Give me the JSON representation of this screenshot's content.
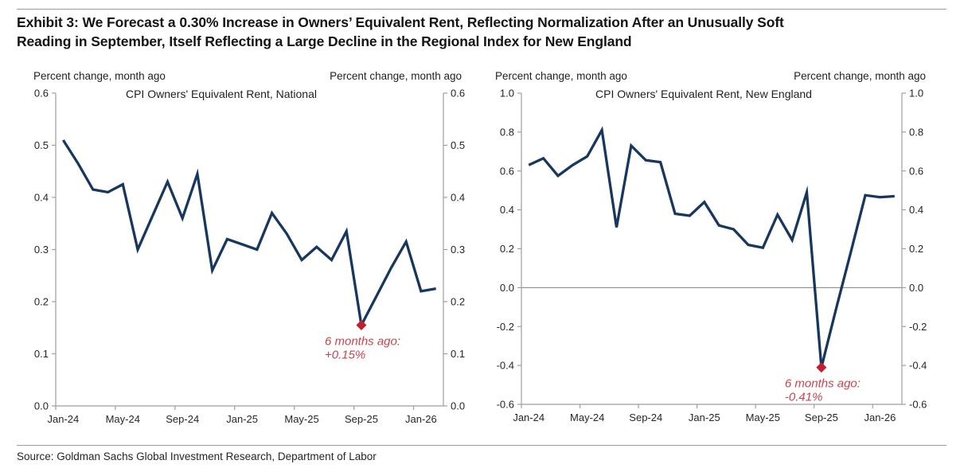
{
  "page": {
    "title": "Exhibit 3: We Forecast a 0.30% Increase in Owners’ Equivalent Rent, Reflecting Normalization After an Unusually Soft\nReading in September, Itself Reflecting a Large Decline in the Regional Index for New England",
    "source": "Source: Goldman Sachs Global Investment Research, Department of Labor"
  },
  "colors": {
    "line": "#17375e",
    "marker": "#c0202e",
    "annotation": "#c8454f",
    "axis": "#9e9e9e",
    "zero_line": "#808080",
    "tick_text": "#262626"
  },
  "chart_data": [
    {
      "type": "line",
      "title": "CPI Owners' Equivalent Rent, National",
      "axis_header_left": "Percent change, month ago",
      "axis_header_right": "Percent change, month ago",
      "categories": [
        "Jan-24",
        "Feb-24",
        "Mar-24",
        "Apr-24",
        "May-24",
        "Jun-24",
        "Jul-24",
        "Aug-24",
        "Sep-24",
        "Oct-24",
        "Nov-24",
        "Dec-24",
        "Jan-25",
        "Feb-25",
        "Mar-25",
        "Apr-25",
        "May-25",
        "Jun-25",
        "Jul-25",
        "Aug-25",
        "Sep-25",
        "Oct-25",
        "Nov-25",
        "Dec-25",
        "Jan-26",
        "Feb-26"
      ],
      "values": [
        0.51,
        0.465,
        0.415,
        0.41,
        0.425,
        0.3,
        0.365,
        0.43,
        0.36,
        0.445,
        0.26,
        0.32,
        0.31,
        0.3,
        0.37,
        0.33,
        0.28,
        0.305,
        0.28,
        0.335,
        0.155,
        0.21,
        0.265,
        0.315,
        0.22,
        0.225
      ],
      "ylim": [
        0.0,
        0.6
      ],
      "y_tick_labels": [
        "0.0",
        "0.1",
        "0.2",
        "0.3",
        "0.4",
        "0.5",
        "0.6"
      ],
      "x_tick_labels": [
        "Jan-24",
        "May-24",
        "Sep-24",
        "Jan-25",
        "May-25",
        "Sep-25",
        "Jan-26"
      ],
      "x_tick_every": 4,
      "grid": false,
      "legend": "none",
      "annotation": {
        "line1": "6 months ago:",
        "line2": "+0.15%",
        "index": 20,
        "value": 0.155
      }
    },
    {
      "type": "line",
      "title": "CPI Owners' Equivalent Rent, New England",
      "axis_header_left": "Percent change, month ago",
      "axis_header_right": "Percent change, month ago",
      "categories": [
        "Jan-24",
        "Feb-24",
        "Mar-24",
        "Apr-24",
        "May-24",
        "Jun-24",
        "Jul-24",
        "Aug-24",
        "Sep-24",
        "Oct-24",
        "Nov-24",
        "Dec-24",
        "Jan-25",
        "Feb-25",
        "Mar-25",
        "Apr-25",
        "May-25",
        "Jun-25",
        "Jul-25",
        "Aug-25",
        "Sep-25",
        "Oct-25",
        "Nov-25",
        "Dec-25",
        "Jan-26",
        "Feb-26"
      ],
      "values": [
        0.63,
        0.665,
        0.575,
        0.63,
        0.675,
        0.81,
        0.31,
        0.73,
        0.655,
        0.645,
        0.38,
        0.37,
        0.44,
        0.32,
        0.3,
        0.22,
        0.205,
        0.375,
        0.245,
        0.49,
        -0.41,
        -0.11,
        0.18,
        0.475,
        0.465,
        0.47
      ],
      "ylim": [
        -0.6,
        1.0
      ],
      "y_tick_labels": [
        "-0.6",
        "-0.4",
        "-0.2",
        "0.0",
        "0.2",
        "0.4",
        "0.6",
        "0.8",
        "1.0"
      ],
      "x_tick_labels": [
        "Jan-24",
        "May-24",
        "Sep-24",
        "Jan-25",
        "May-25",
        "Sep-25",
        "Jan-26"
      ],
      "x_tick_every": 4,
      "grid": false,
      "legend": "none",
      "annotation": {
        "line1": "6 months ago:",
        "line2": "-0.41%",
        "index": 20,
        "value": -0.41
      }
    }
  ]
}
